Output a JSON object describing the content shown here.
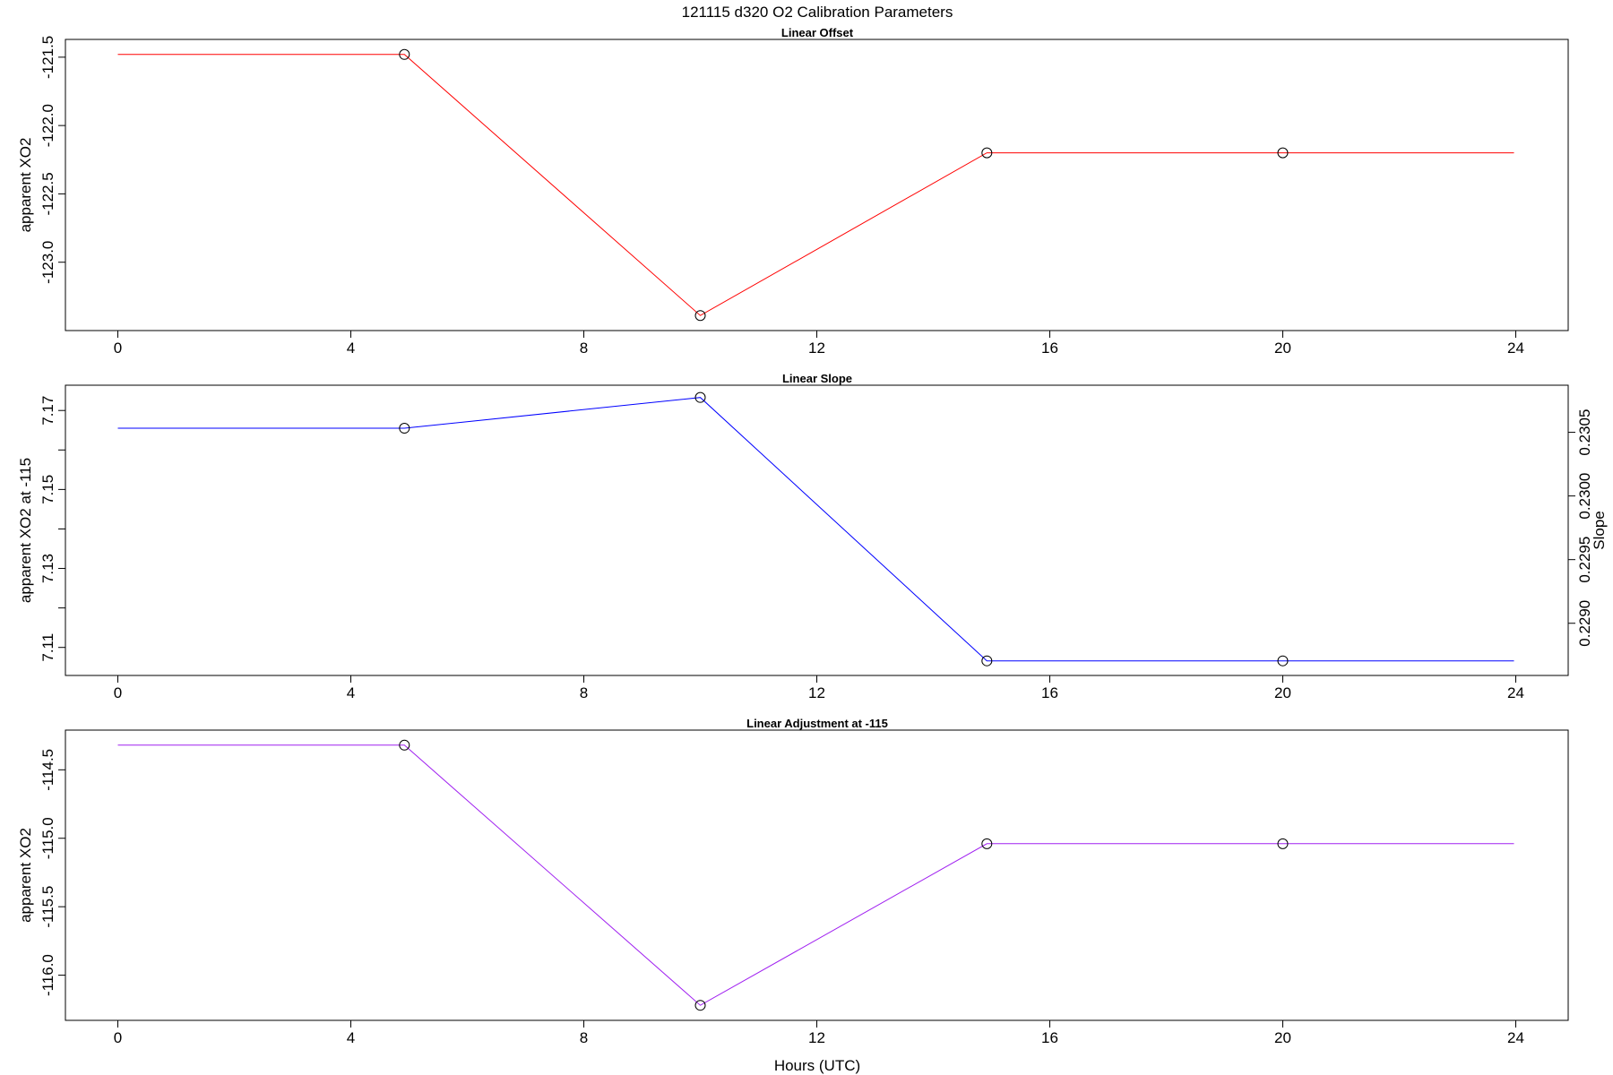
{
  "figure": {
    "title": "121115   d320   O2 Calibration Parameters",
    "xlabel": "Hours (UTC)"
  },
  "chart_data": [
    {
      "type": "line",
      "title": "Linear Offset",
      "xlabel": "",
      "ylabel": "apparent XO2",
      "x": [
        0,
        4.92,
        10,
        14.92,
        20,
        23.97
      ],
      "values": [
        -121.48,
        -121.48,
        -123.39,
        -122.2,
        -122.2,
        -122.2
      ],
      "markers": [
        false,
        true,
        true,
        true,
        true,
        false
      ],
      "color": "#ff0000",
      "xlim": [
        -0.9,
        24.9
      ],
      "ylim": [
        -123.5,
        -121.37
      ],
      "xticks": [
        0,
        4,
        8,
        12,
        16,
        20,
        24
      ],
      "yticks": [
        -121.5,
        -122.0,
        -122.5,
        -123.0
      ],
      "ytick_labels": [
        "-121.5",
        "-122.0",
        "-122.5",
        "-123.0"
      ]
    },
    {
      "type": "line",
      "title": "Linear Slope",
      "xlabel": "",
      "ylabel": "apparent XO2 at -115",
      "ylabel_right": "Slope",
      "x": [
        0,
        4.92,
        10,
        14.92,
        20,
        23.97
      ],
      "values": [
        7.1655,
        7.1655,
        7.1733,
        7.1066,
        7.1066,
        7.1066
      ],
      "markers": [
        false,
        true,
        true,
        true,
        true,
        false
      ],
      "color": "#0000ff",
      "xlim": [
        -0.9,
        24.9
      ],
      "ylim": [
        7.1029,
        7.1764
      ],
      "xticks": [
        0,
        4,
        8,
        12,
        16,
        20,
        24
      ],
      "yticks": [
        7.11,
        7.12,
        7.13,
        7.14,
        7.15,
        7.16,
        7.17
      ],
      "ytick_labels": [
        "7.11",
        "",
        "7.13",
        "",
        "7.15",
        "",
        "7.17"
      ],
      "ylim_right": [
        0.22859,
        0.23087
      ],
      "yticks_right": [
        0.229,
        0.2295,
        0.23,
        0.2305
      ],
      "ytick_labels_right": [
        "0.2290",
        "0.2295",
        "0.2300",
        "0.2305"
      ]
    },
    {
      "type": "line",
      "title": "Linear Adjustment at -115",
      "xlabel": "Hours (UTC)",
      "ylabel": "apparent XO2",
      "x": [
        0,
        4.92,
        10,
        14.92,
        20,
        23.97
      ],
      "values": [
        -114.32,
        -114.32,
        -116.22,
        -115.04,
        -115.04,
        -115.04
      ],
      "markers": [
        false,
        true,
        true,
        true,
        true,
        false
      ],
      "color": "#a020f0",
      "xlim": [
        -0.9,
        24.9
      ],
      "ylim": [
        -116.33,
        -114.21
      ],
      "xticks": [
        0,
        4,
        8,
        12,
        16,
        20,
        24
      ],
      "yticks": [
        -114.5,
        -115.0,
        -115.5,
        -116.0
      ],
      "ytick_labels": [
        "-114.5",
        "-115.0",
        "-115.5",
        "-116.0"
      ]
    }
  ]
}
